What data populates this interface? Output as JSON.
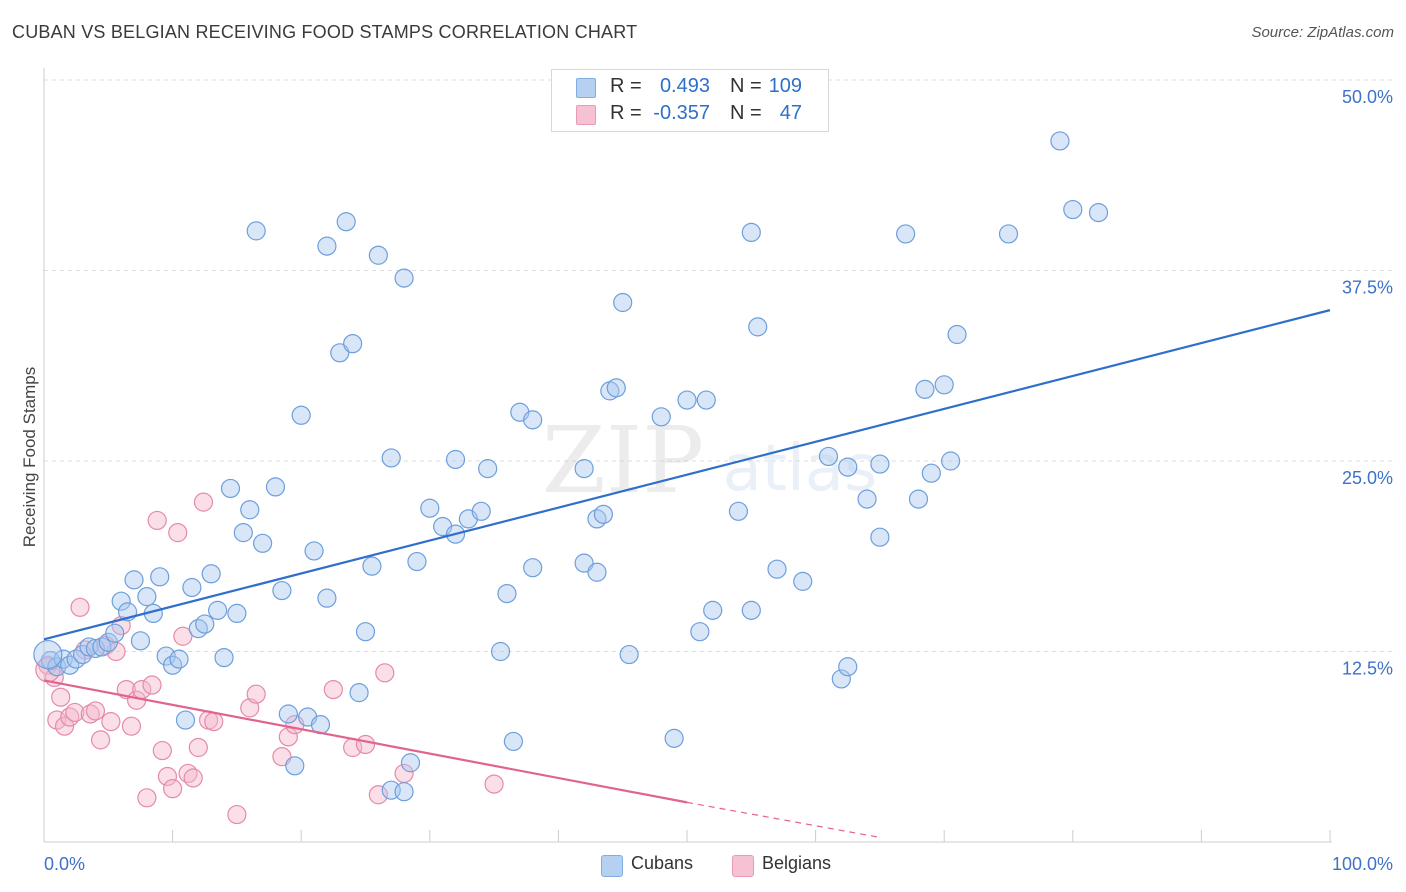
{
  "header": {
    "title": "CUBAN VS BELGIAN RECEIVING FOOD STAMPS CORRELATION CHART",
    "source": "Source: ZipAtlas.com"
  },
  "watermark": {
    "zip": "ZIP",
    "atlas": "atlas"
  },
  "legend": {
    "r_label": "R =",
    "n_label": "N =",
    "rows": [
      {
        "name": "Cubans",
        "r": "0.493",
        "n": "109",
        "color": "#a9c8ef"
      },
      {
        "name": "Belgians",
        "r": "-0.357",
        "n": "47",
        "color": "#f5b7cb"
      }
    ]
  },
  "colors": {
    "cubans_fill": "#a9c8ef",
    "cubans_stroke": "#6d9fdc",
    "cubans_line": "#2f6fcb",
    "belgians_fill": "#f5b7cb",
    "belgians_stroke": "#e58aa8",
    "belgians_line": "#e0648e",
    "axis_text": "#3d72c8"
  },
  "chart_data": {
    "type": "scatter",
    "title": "CUBAN VS BELGIAN RECEIVING FOOD STAMPS CORRELATION CHART",
    "xlabel": "",
    "ylabel": "Receiving Food Stamps",
    "xlim": [
      0,
      100
    ],
    "ylim": [
      0,
      50
    ],
    "x_tick_labels": [
      "0.0%",
      "100.0%"
    ],
    "y_ticks": [
      12.5,
      25.0,
      37.5,
      50.0
    ],
    "y_tick_labels": [
      "12.5%",
      "25.0%",
      "37.5%",
      "50.0%"
    ],
    "grid": true,
    "series": [
      {
        "name": "Cubans",
        "r": 0.493,
        "n": 109,
        "trend": {
          "x": [
            0,
            100
          ],
          "y": [
            13.3,
            34.9
          ]
        },
        "points": [
          [
            0.5,
            11.9
          ],
          [
            1,
            11.5
          ],
          [
            1.5,
            12.0
          ],
          [
            2,
            11.6
          ],
          [
            2.5,
            12.0
          ],
          [
            3,
            12.3
          ],
          [
            3.5,
            12.8
          ],
          [
            4,
            12.7
          ],
          [
            4.5,
            12.8
          ],
          [
            5,
            13.1
          ],
          [
            5.5,
            13.7
          ],
          [
            6,
            15.8
          ],
          [
            6.5,
            15.1
          ],
          [
            7,
            17.2
          ],
          [
            7.5,
            13.2
          ],
          [
            8,
            16.1
          ],
          [
            8.5,
            15.0
          ],
          [
            9,
            17.4
          ],
          [
            9.5,
            12.2
          ],
          [
            10,
            11.6
          ],
          [
            10.5,
            12.0
          ],
          [
            11,
            8.0
          ],
          [
            11.5,
            16.7
          ],
          [
            12,
            14.0
          ],
          [
            12.5,
            14.3
          ],
          [
            13,
            17.6
          ],
          [
            13.5,
            15.2
          ],
          [
            14,
            12.1
          ],
          [
            14.5,
            23.2
          ],
          [
            15,
            15.0
          ],
          [
            15.5,
            20.3
          ],
          [
            16,
            21.8
          ],
          [
            16.5,
            40.1
          ],
          [
            17,
            19.6
          ],
          [
            18,
            23.3
          ],
          [
            18.5,
            16.5
          ],
          [
            19,
            8.4
          ],
          [
            19.5,
            5.0
          ],
          [
            20,
            28.0
          ],
          [
            20.5,
            8.2
          ],
          [
            21,
            19.1
          ],
          [
            21.5,
            7.7
          ],
          [
            22,
            16.0
          ],
          [
            22,
            39.1
          ],
          [
            23,
            32.1
          ],
          [
            23.5,
            40.7
          ],
          [
            24,
            32.7
          ],
          [
            24.5,
            9.8
          ],
          [
            25,
            13.8
          ],
          [
            25.5,
            18.1
          ],
          [
            26,
            38.5
          ],
          [
            27,
            25.2
          ],
          [
            27,
            3.4
          ],
          [
            28,
            37.0
          ],
          [
            28,
            3.3
          ],
          [
            28.5,
            5.2
          ],
          [
            29,
            18.4
          ],
          [
            30,
            21.9
          ],
          [
            31,
            20.7
          ],
          [
            32,
            20.2
          ],
          [
            32,
            25.1
          ],
          [
            33,
            21.2
          ],
          [
            34,
            21.7
          ],
          [
            34.5,
            24.5
          ],
          [
            35.5,
            12.5
          ],
          [
            36,
            16.3
          ],
          [
            36.5,
            6.6
          ],
          [
            37,
            28.2
          ],
          [
            38,
            27.7
          ],
          [
            38,
            18.0
          ],
          [
            42,
            18.3
          ],
          [
            42,
            24.5
          ],
          [
            43,
            17.7
          ],
          [
            43,
            21.2
          ],
          [
            43.5,
            21.5
          ],
          [
            44,
            29.6
          ],
          [
            44.5,
            29.8
          ],
          [
            45,
            35.4
          ],
          [
            45.5,
            12.3
          ],
          [
            48,
            27.9
          ],
          [
            49,
            6.8
          ],
          [
            50,
            29.0
          ],
          [
            51,
            13.8
          ],
          [
            51.5,
            29.0
          ],
          [
            52,
            15.2
          ],
          [
            54,
            21.7
          ],
          [
            55,
            15.2
          ],
          [
            55.5,
            33.8
          ],
          [
            57,
            17.9
          ],
          [
            59,
            17.1
          ],
          [
            61,
            25.3
          ],
          [
            62,
            10.7
          ],
          [
            62.5,
            11.5
          ],
          [
            62.5,
            24.6
          ],
          [
            64,
            22.5
          ],
          [
            65,
            20.0
          ],
          [
            65,
            24.8
          ],
          [
            67,
            39.9
          ],
          [
            68,
            22.5
          ],
          [
            68.5,
            29.7
          ],
          [
            69,
            24.2
          ],
          [
            70.5,
            25.0
          ],
          [
            71,
            33.3
          ],
          [
            75,
            39.9
          ],
          [
            79,
            46.0
          ],
          [
            80,
            41.5
          ],
          [
            82,
            41.3
          ],
          [
            55,
            40.0
          ],
          [
            70,
            30.0
          ]
        ]
      },
      {
        "name": "Belgians",
        "r": -0.357,
        "n": 47,
        "trend": {
          "x": [
            0,
            50
          ],
          "y": [
            10.6,
            2.6
          ]
        },
        "trend_dashed": {
          "x": [
            50,
            65
          ],
          "y": [
            2.6,
            0.3
          ]
        },
        "points": [
          [
            0.3,
            11.6
          ],
          [
            0.8,
            10.8
          ],
          [
            1,
            8.0
          ],
          [
            1.3,
            9.5
          ],
          [
            1.6,
            7.6
          ],
          [
            2,
            8.2
          ],
          [
            2.4,
            8.5
          ],
          [
            2.8,
            15.4
          ],
          [
            3.2,
            12.6
          ],
          [
            3.6,
            8.4
          ],
          [
            4,
            8.6
          ],
          [
            4.4,
            6.7
          ],
          [
            4.8,
            12.9
          ],
          [
            5.2,
            7.9
          ],
          [
            5.6,
            12.5
          ],
          [
            6,
            14.2
          ],
          [
            6.4,
            10.0
          ],
          [
            6.8,
            7.6
          ],
          [
            7.2,
            9.3
          ],
          [
            7.6,
            10.0
          ],
          [
            8,
            2.9
          ],
          [
            8.4,
            10.3
          ],
          [
            8.8,
            21.1
          ],
          [
            9.2,
            6.0
          ],
          [
            9.6,
            4.3
          ],
          [
            10,
            3.5
          ],
          [
            10.4,
            20.3
          ],
          [
            10.8,
            13.5
          ],
          [
            11.2,
            4.5
          ],
          [
            11.6,
            4.2
          ],
          [
            12,
            6.2
          ],
          [
            12.4,
            22.3
          ],
          [
            12.8,
            8.0
          ],
          [
            13.2,
            7.9
          ],
          [
            15,
            1.8
          ],
          [
            16,
            8.8
          ],
          [
            16.5,
            9.7
          ],
          [
            18.5,
            5.6
          ],
          [
            19,
            6.9
          ],
          [
            19.5,
            7.7
          ],
          [
            22.5,
            10.0
          ],
          [
            24,
            6.2
          ],
          [
            25,
            6.4
          ],
          [
            26,
            3.1
          ],
          [
            26.5,
            11.1
          ],
          [
            28,
            4.5
          ],
          [
            35,
            3.8
          ]
        ]
      }
    ]
  },
  "bottom_legend": [
    {
      "label": "Cubans"
    },
    {
      "label": "Belgians"
    }
  ]
}
